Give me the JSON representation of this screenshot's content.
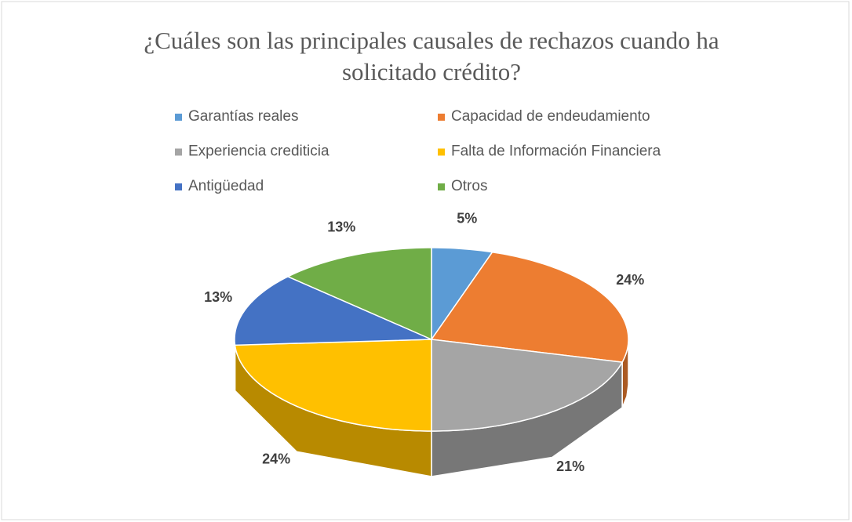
{
  "chart_data": {
    "type": "pie3d",
    "title": "¿Cuáles son las principales causales de rechazos cuando ha solicitado crédito?",
    "categories": [
      "Garantías reales",
      "Capacidad de endeudamiento",
      "Experiencia crediticia",
      "Falta de Información Financiera",
      "Antigüedad",
      "Otros"
    ],
    "values": [
      5,
      24,
      21,
      24,
      13,
      13
    ],
    "value_labels": [
      "5%",
      "24%",
      "21%",
      "24%",
      "13%",
      "13%"
    ],
    "colors": [
      "#5b9bd5",
      "#ed7d31",
      "#a5a5a5",
      "#ffc000",
      "#4472c4",
      "#70ad47"
    ],
    "legend": "top"
  }
}
